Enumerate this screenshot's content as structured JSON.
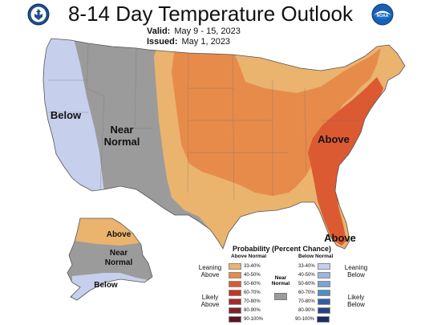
{
  "header": {
    "title": "8-14 Day Temperature Outlook",
    "valid_label": "Valid:",
    "valid_value": "May 9 - 15, 2023",
    "issued_label": "Issued:",
    "issued_value": "May 1, 2023"
  },
  "logos": {
    "left": "department-of-commerce-seal",
    "right": "noaa-logo",
    "right_text": "NOAA"
  },
  "map_labels": {
    "below_west": "Below",
    "near_normal_line1": "Near",
    "near_normal_line2": "Normal",
    "above_east": "Above",
    "above_florida": "Above",
    "alaska_above": "Above",
    "alaska_near_line1": "Near",
    "alaska_near_line2": "Normal",
    "alaska_below": "Below"
  },
  "legend": {
    "title": "Probability (Percent Chance)",
    "above_header": "Above Normal",
    "below_header": "Below Normal",
    "near_normal_line1": "Near",
    "near_normal_line2": "Normal",
    "leaning_above_1": "Leaning",
    "leaning_above_2": "Above",
    "likely_above_1": "Likely",
    "likely_above_2": "Above",
    "leaning_below_1": "Leaning",
    "leaning_below_2": "Below",
    "likely_below_1": "Likely",
    "likely_below_2": "Below",
    "above_bins": [
      {
        "label": "33-40%",
        "color": "#eab36e"
      },
      {
        "label": "40-50%",
        "color": "#e78b4b"
      },
      {
        "label": "50-60%",
        "color": "#dc5a32"
      },
      {
        "label": "60-70%",
        "color": "#c53429"
      },
      {
        "label": "70-80%",
        "color": "#a8292a"
      },
      {
        "label": "80-90%",
        "color": "#82202a"
      },
      {
        "label": "90-100%",
        "color": "#5a1422"
      }
    ],
    "below_bins": [
      {
        "label": "33-40%",
        "color": "#c6cfec"
      },
      {
        "label": "40-50%",
        "color": "#9fb5e0"
      },
      {
        "label": "50-60%",
        "color": "#7aa3d6"
      },
      {
        "label": "60-70%",
        "color": "#4f8ec9"
      },
      {
        "label": "70-80%",
        "color": "#2f5ea8"
      },
      {
        "label": "80-90%",
        "color": "#26418c"
      },
      {
        "label": "90-100%",
        "color": "#1d2b63"
      }
    ],
    "near_normal_color": "#9b9b9b"
  }
}
